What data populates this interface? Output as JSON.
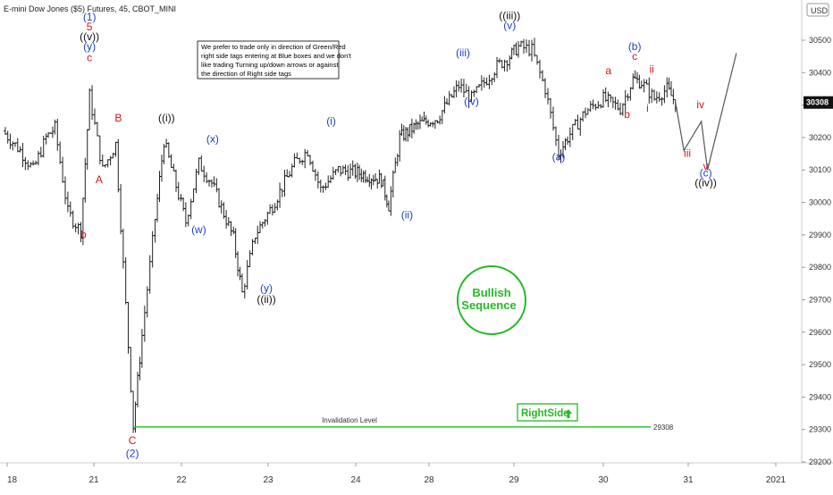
{
  "header": {
    "title": "E-mini Dow Jones ($5) Futures, 45, CBOT_MINI",
    "currency": "USD"
  },
  "note": {
    "lines": [
      "We prefer to trade only in direction of Green/Red",
      "right side tags entering at Blue boxes and we don't",
      "like trading Turning up/down arrows or against",
      "the direction of Right side tags"
    ]
  },
  "badge": {
    "line1": "Bullish",
    "line2": "Sequence",
    "color": "#22bb22"
  },
  "rightside": {
    "label": "RightSide",
    "arrow": "up-arrow",
    "color": "#22bb22"
  },
  "invalidation": {
    "label": "Invalidation Level",
    "value": 29308,
    "value_label": "29308",
    "color": "#22bb22"
  },
  "last_price": {
    "value": 30308,
    "label": "30308"
  },
  "colors": {
    "blue": "#1e3fd0",
    "red": "#e01010",
    "black": "#111111",
    "bars": "#222222",
    "projection": "#555555"
  },
  "chart_data": {
    "type": "ohlc",
    "ylim": [
      29170,
      30560
    ],
    "y_ticks": [
      {
        "v": 30500,
        "label": "30500"
      },
      {
        "v": 30400,
        "label": "30400"
      },
      {
        "v": 30300,
        "label": "30300"
      },
      {
        "v": 30200,
        "label": "30200"
      },
      {
        "v": 30100,
        "label": "30100"
      },
      {
        "v": 30000,
        "label": "30000"
      },
      {
        "v": 29900,
        "label": "29900"
      },
      {
        "v": 29800,
        "label": "29800"
      },
      {
        "v": 29700,
        "label": "29700"
      },
      {
        "v": 29600,
        "label": "29600"
      },
      {
        "v": 29500,
        "label": "29500"
      },
      {
        "v": 29400,
        "label": "29400"
      },
      {
        "v": 29300,
        "label": "29300"
      },
      {
        "v": 29200,
        "label": "29200"
      }
    ],
    "x_ticks": [
      {
        "t": 0,
        "label": "18"
      },
      {
        "t": 3,
        "label": "21"
      },
      {
        "t": 4,
        "label": "22"
      },
      {
        "t": 5,
        "label": "23"
      },
      {
        "t": 6,
        "label": "24"
      },
      {
        "t": 7,
        "label": "28"
      },
      {
        "t": 8,
        "label": "29"
      },
      {
        "t": 9,
        "label": "30"
      },
      {
        "t": 10,
        "label": "31"
      },
      {
        "t": 11,
        "label": "2021"
      }
    ],
    "path": [
      [
        -0.05,
        30220
      ],
      [
        0.15,
        30160
      ],
      [
        0.3,
        30100
      ],
      [
        0.45,
        30200
      ],
      [
        0.55,
        30230
      ],
      [
        0.7,
        29970
      ],
      [
        0.85,
        29910
      ],
      [
        0.95,
        30330
      ],
      [
        1.1,
        30100
      ],
      [
        1.25,
        30180
      ],
      [
        1.45,
        29310
      ],
      [
        1.55,
        29590
      ],
      [
        1.7,
        29950
      ],
      [
        1.8,
        30190
      ],
      [
        2.05,
        29940
      ],
      [
        2.2,
        30120
      ],
      [
        2.35,
        30060
      ],
      [
        2.6,
        29890
      ],
      [
        2.7,
        29720
      ],
      [
        2.85,
        29900
      ],
      [
        3.05,
        29990
      ],
      [
        3.3,
        30120
      ],
      [
        3.45,
        30160
      ],
      [
        3.6,
        30040
      ],
      [
        3.8,
        30100
      ],
      [
        4.05,
        30090
      ],
      [
        4.35,
        30070
      ],
      [
        4.45,
        29990
      ],
      [
        4.6,
        30200
      ],
      [
        4.85,
        30240
      ],
      [
        5.1,
        30260
      ],
      [
        5.35,
        30360
      ],
      [
        5.5,
        30320
      ],
      [
        5.65,
        30370
      ],
      [
        5.8,
        30420
      ],
      [
        5.95,
        30450
      ],
      [
        6.05,
        30480
      ],
      [
        6.2,
        30470
      ],
      [
        6.35,
        30350
      ],
      [
        6.5,
        30150
      ],
      [
        6.6,
        30200
      ],
      [
        6.8,
        30280
      ],
      [
        7.0,
        30320
      ],
      [
        7.2,
        30290
      ],
      [
        7.35,
        30380
      ],
      [
        7.45,
        30370
      ],
      [
        7.6,
        30320
      ],
      [
        7.75,
        30350
      ],
      [
        7.85,
        30308
      ]
    ],
    "seed": 7
  },
  "wave_labels": [
    {
      "text": "(1)",
      "t": 0.95,
      "v": 30560,
      "color": "blue"
    },
    {
      "text": "5",
      "t": 0.95,
      "v": 30530,
      "color": "red"
    },
    {
      "text": "((v))",
      "t": 0.95,
      "v": 30500,
      "color": "black"
    },
    {
      "text": "(y)",
      "t": 0.95,
      "v": 30470,
      "color": "blue"
    },
    {
      "text": "c",
      "t": 0.95,
      "v": 30435,
      "color": "red"
    },
    {
      "text": "B",
      "t": 1.28,
      "v": 30250,
      "color": "red"
    },
    {
      "text": "A",
      "t": 1.06,
      "v": 30060,
      "color": "red"
    },
    {
      "text": "b",
      "t": 0.88,
      "v": 29890,
      "color": "red"
    },
    {
      "text": "C",
      "t": 1.44,
      "v": 29255,
      "color": "red"
    },
    {
      "text": "(2)",
      "t": 1.44,
      "v": 29215,
      "color": "blue"
    },
    {
      "text": "((i))",
      "t": 1.83,
      "v": 30250,
      "color": "black"
    },
    {
      "text": "(x)",
      "t": 2.36,
      "v": 30185,
      "color": "blue"
    },
    {
      "text": "(w)",
      "t": 2.2,
      "v": 29905,
      "color": "blue"
    },
    {
      "text": "(y)",
      "t": 2.98,
      "v": 29725,
      "color": "blue"
    },
    {
      "text": "((ii))",
      "t": 2.98,
      "v": 29690,
      "color": "black"
    },
    {
      "text": "(i)",
      "t": 3.72,
      "v": 30240,
      "color": "blue"
    },
    {
      "text": "(ii)",
      "t": 4.7,
      "v": 29950,
      "color": "blue"
    },
    {
      "text": "(iii)",
      "t": 5.4,
      "v": 30450,
      "color": "blue"
    },
    {
      "text": "(iv)",
      "t": 5.5,
      "v": 30300,
      "color": "blue"
    },
    {
      "text": "(v)",
      "t": 5.95,
      "v": 30535,
      "color": "blue"
    },
    {
      "text": "((iii))",
      "t": 5.95,
      "v": 30565,
      "color": "black"
    },
    {
      "text": "(a)",
      "t": 6.5,
      "v": 30130,
      "color": "blue"
    },
    {
      "text": "a",
      "t": 7.06,
      "v": 30395,
      "color": "red"
    },
    {
      "text": "b",
      "t": 7.28,
      "v": 30260,
      "color": "red"
    },
    {
      "text": "(b)",
      "t": 7.37,
      "v": 30470,
      "color": "blue"
    },
    {
      "text": "c",
      "t": 7.37,
      "v": 30440,
      "color": "red"
    },
    {
      "text": "ii",
      "t": 7.57,
      "v": 30400,
      "color": "red"
    },
    {
      "text": "i",
      "t": 7.52,
      "v": 30280,
      "color": "red"
    },
    {
      "text": "iii",
      "t": 7.99,
      "v": 30140,
      "color": "red"
    },
    {
      "text": "iv",
      "t": 8.14,
      "v": 30290,
      "color": "red"
    },
    {
      "text": "v",
      "t": 8.2,
      "v": 30100,
      "color": "red"
    },
    {
      "text": "(c)",
      "t": 8.2,
      "v": 30080,
      "color": "blue"
    },
    {
      "text": "((iv))",
      "t": 8.2,
      "v": 30050,
      "color": "black"
    }
  ],
  "projection": {
    "points": [
      [
        7.85,
        30308
      ],
      [
        7.95,
        30160
      ],
      [
        8.15,
        30250
      ],
      [
        8.22,
        30100
      ],
      [
        8.55,
        30460
      ]
    ]
  }
}
